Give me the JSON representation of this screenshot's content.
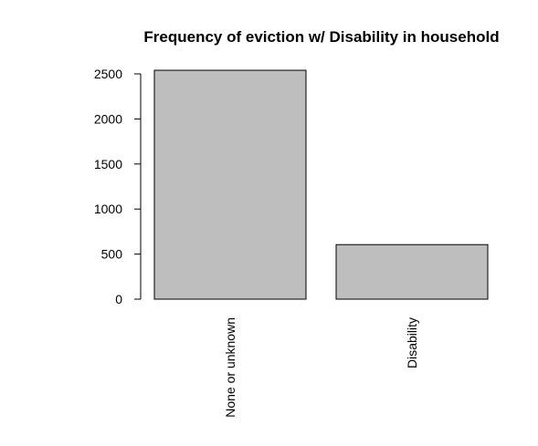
{
  "chart_data": {
    "type": "bar",
    "title": "Frequency of eviction w/ Disability in household",
    "xlabel": "",
    "ylabel": "",
    "categories": [
      "None or unknown",
      "Disability"
    ],
    "values": [
      2540,
      605
    ],
    "ylim": [
      0,
      2500
    ],
    "yticks": [
      "0",
      "500",
      "1000",
      "1500",
      "2000",
      "2500"
    ],
    "grid": false,
    "legend": "none",
    "colors": {
      "bar_fill": "#bebebe",
      "bar_stroke": "#000000",
      "axis": "#000000",
      "background": "#ffffff"
    }
  }
}
